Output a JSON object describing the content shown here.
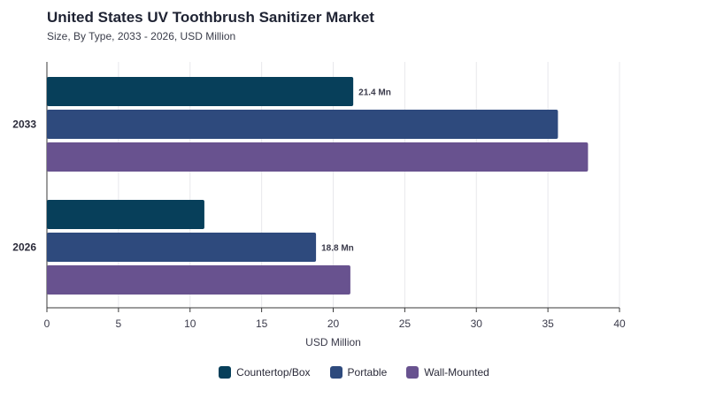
{
  "title": "United States UV Toothbrush Sanitizer Market",
  "subtitle": "Size, By Type, 2033 - 2026, USD Million",
  "colors": {
    "Countertop/Box": "#073f5a",
    "Portable": "#2e4a7d",
    "Wall-Mounted": "#68528f",
    "grid": "#e8e8ec",
    "axis": "#3a3a3a"
  },
  "chart_data": {
    "type": "bar",
    "orientation": "horizontal",
    "categories": [
      "2033",
      "2026"
    ],
    "series": [
      {
        "name": "Countertop/Box",
        "values": [
          21.4,
          11.0
        ]
      },
      {
        "name": "Portable",
        "values": [
          35.7,
          18.8
        ]
      },
      {
        "name": "Wall-Mounted",
        "values": [
          37.8,
          21.2
        ]
      }
    ],
    "data_labels": [
      {
        "category": "2033",
        "series": "Countertop/Box",
        "text": "21.4 Mn"
      },
      {
        "category": "2026",
        "series": "Portable",
        "text": "18.8 Mn"
      }
    ],
    "xlabel": "USD Million",
    "ylabel": "",
    "xlim": [
      0,
      40
    ],
    "xticks": [
      0,
      5,
      10,
      15,
      20,
      25,
      30,
      35,
      40
    ],
    "grid": true,
    "legend": "bottom-center"
  }
}
